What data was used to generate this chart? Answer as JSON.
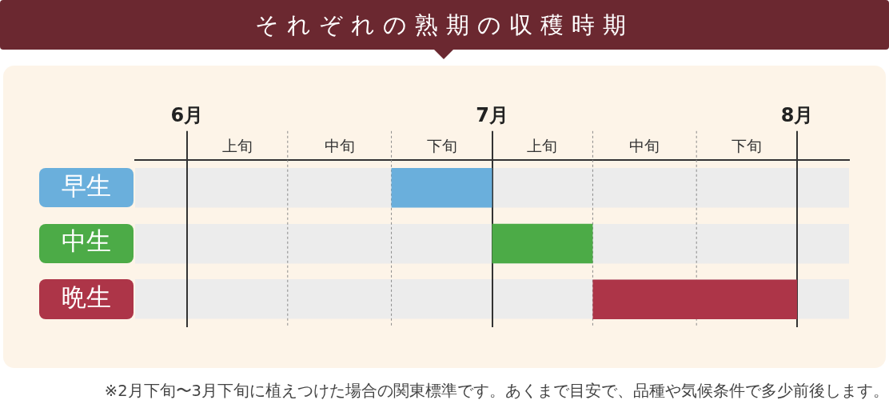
{
  "chart_data": {
    "type": "bar",
    "orientation": "horizontal",
    "title": "それぞれの熟期の収穫時期",
    "categories": [
      "早生",
      "中生",
      "晩生"
    ],
    "base": [
      6.67,
      7,
      7.33
    ],
    "values": [
      0.33,
      0.33,
      0.67
    ],
    "colors": [
      "#6aafdc",
      "#4cab47",
      "#ad3548"
    ],
    "xlim": [
      5.83,
      8.17
    ],
    "xticks": [
      {
        "value": 6,
        "label": "6月"
      },
      {
        "value": 6.33,
        "label": null
      },
      {
        "value": 6.67,
        "label": null
      },
      {
        "value": 7,
        "label": "7月"
      },
      {
        "value": 7.33,
        "label": null
      },
      {
        "value": 7.67,
        "label": null
      },
      {
        "value": 8,
        "label": "8月"
      }
    ],
    "grid": "x",
    "legend": false,
    "annotations": [
      "上旬",
      "中旬",
      "下旬",
      "上旬",
      "中旬",
      "下旬",
      "※2月下旬〜3月下旬に植えつけた場合の関東標準です。あくまで目安で、品種や気候条件で多少前後します。"
    ]
  }
}
